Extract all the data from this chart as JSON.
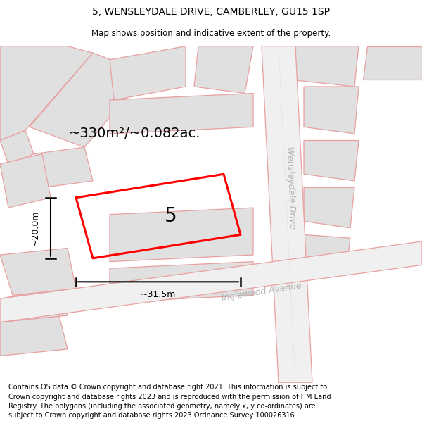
{
  "title": "5, WENSLEYDALE DRIVE, CAMBERLEY, GU15 1SP",
  "subtitle": "Map shows position and indicative extent of the property.",
  "footer": "Contains OS data © Crown copyright and database right 2021. This information is subject to Crown copyright and database rights 2023 and is reproduced with the permission of HM Land Registry. The polygons (including the associated geometry, namely x, y co-ordinates) are subject to Crown copyright and database rights 2023 Ordnance Survey 100026316.",
  "area_label": "~330m²/~0.082ac.",
  "width_label": "~31.5m",
  "height_label": "~20.0m",
  "plot_number": "5",
  "bg_color": "#ffffff",
  "block_fill": "#e0e0e0",
  "pink_line": "#e8a0a0",
  "plot_outline": "#ff0000",
  "text_color": "#000000",
  "road_text_color": "#b0b0b0",
  "title_fontsize": 10,
  "subtitle_fontsize": 8.5,
  "footer_fontsize": 7.0,
  "area_fontsize": 14,
  "plot_num_fontsize": 20,
  "dim_fontsize": 9,
  "road_fontsize": 9
}
